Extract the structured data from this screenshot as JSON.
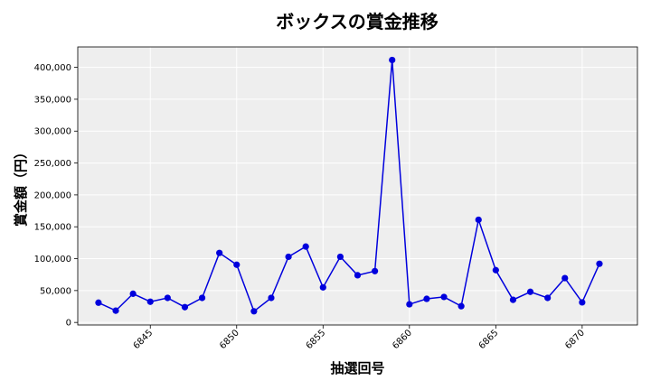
{
  "chart_data": {
    "type": "line",
    "title": "ボックスの賞金推移",
    "xlabel": "抽選回号",
    "ylabel": "賞金額（円）",
    "x": [
      6842,
      6843,
      6844,
      6845,
      6846,
      6847,
      6848,
      6849,
      6850,
      6851,
      6852,
      6853,
      6854,
      6855,
      6856,
      6857,
      6858,
      6859,
      6860,
      6861,
      6862,
      6863,
      6864,
      6865,
      6866,
      6867,
      6868,
      6869,
      6870,
      6871
    ],
    "series": [
      {
        "values": [
          31000,
          18500,
          45000,
          32500,
          38500,
          24000,
          38500,
          109000,
          90500,
          17500,
          38500,
          103000,
          119000,
          55000,
          103000,
          74000,
          80500,
          411500,
          28500,
          37000,
          40000,
          25500,
          161000,
          82000,
          35500,
          48000,
          38500,
          69500,
          31500,
          92000
        ],
        "color": "#0000dd"
      }
    ],
    "xlim": [
      6840.8,
      6873.2
    ],
    "ylim": [
      -4000,
      432000
    ],
    "xticks": [
      6845,
      6850,
      6855,
      6860,
      6865,
      6870
    ],
    "xtick_labels": [
      "6845",
      "6850",
      "6855",
      "6860",
      "6865",
      "6870"
    ],
    "yticks": [
      0,
      50000,
      100000,
      150000,
      200000,
      250000,
      300000,
      350000,
      400000
    ],
    "ytick_labels": [
      "0",
      "50,000",
      "100,000",
      "150,000",
      "200,000",
      "250,000",
      "300,000",
      "350,000",
      "400,000"
    ],
    "grid": true,
    "legend": "none",
    "background_color": "#eeeeee",
    "grid_color": "#ffffff"
  }
}
